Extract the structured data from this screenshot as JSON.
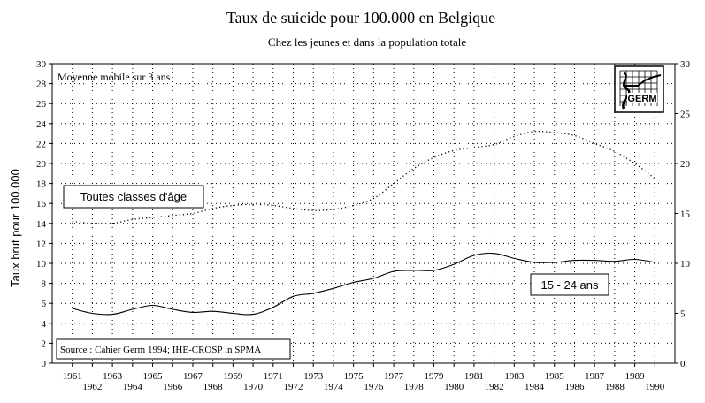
{
  "chart_data": {
    "type": "line",
    "title": "Taux de suicide pour 100.000 en Belgique",
    "subtitle": "Chez les jeunes et dans la population totale",
    "ylabel": "Taux brut pour 100.000",
    "note": "Moyenne mobile sur 3 ans",
    "source": "Source : Cahier Germ 1994; IHE-CROSP in SPMA",
    "logo_text": "GERM",
    "ylim": [
      0,
      30
    ],
    "y_ticks_left": [
      "0",
      "2",
      "4",
      "6",
      "8",
      "10",
      "12",
      "14",
      "16",
      "18",
      "20",
      "22",
      "24",
      "26",
      "28",
      "30"
    ],
    "y_ticks_right": [
      "0",
      "5",
      "10",
      "15",
      "20",
      "25",
      "30"
    ],
    "x_ticks_top": [
      "1961",
      "1963",
      "1965",
      "1967",
      "1969",
      "1971",
      "1973",
      "1975",
      "1977",
      "1979",
      "1981",
      "1983",
      "1985",
      "1987",
      "1989"
    ],
    "x_ticks_bottom": [
      "1962",
      "1964",
      "1966",
      "1968",
      "1970",
      "1972",
      "1974",
      "1976",
      "1978",
      "1980",
      "1982",
      "1984",
      "1986",
      "1988",
      "1990"
    ],
    "grid": true,
    "x": [
      1961,
      1962,
      1963,
      1964,
      1965,
      1966,
      1967,
      1968,
      1969,
      1970,
      1971,
      1972,
      1973,
      1974,
      1975,
      1976,
      1977,
      1978,
      1979,
      1980,
      1981,
      1982,
      1983,
      1984,
      1985,
      1986,
      1987,
      1988,
      1989,
      1990
    ],
    "series": [
      {
        "name": "Toutes classes d'âge",
        "style": "dotted",
        "values": [
          14.2,
          14.0,
          14.0,
          14.4,
          14.6,
          14.8,
          15.0,
          15.5,
          15.8,
          15.9,
          15.8,
          15.5,
          15.3,
          15.4,
          15.8,
          16.5,
          18.0,
          19.5,
          20.6,
          21.3,
          21.6,
          21.9,
          22.7,
          23.2,
          23.1,
          22.8,
          22.0,
          21.2,
          20.0,
          18.5
        ]
      },
      {
        "name": "15 - 24 ans",
        "style": "solid",
        "values": [
          5.5,
          5.0,
          4.9,
          5.4,
          5.8,
          5.4,
          5.1,
          5.2,
          5.0,
          4.9,
          5.6,
          6.7,
          7.0,
          7.5,
          8.1,
          8.5,
          9.2,
          9.3,
          9.3,
          9.9,
          10.8,
          11.0,
          10.5,
          10.1,
          10.1,
          10.3,
          10.3,
          10.2,
          10.4,
          10.1
        ]
      }
    ]
  },
  "colors": {
    "background": "#ffffff",
    "axis": "#000000",
    "grid": "#000000",
    "series": "#000000"
  }
}
